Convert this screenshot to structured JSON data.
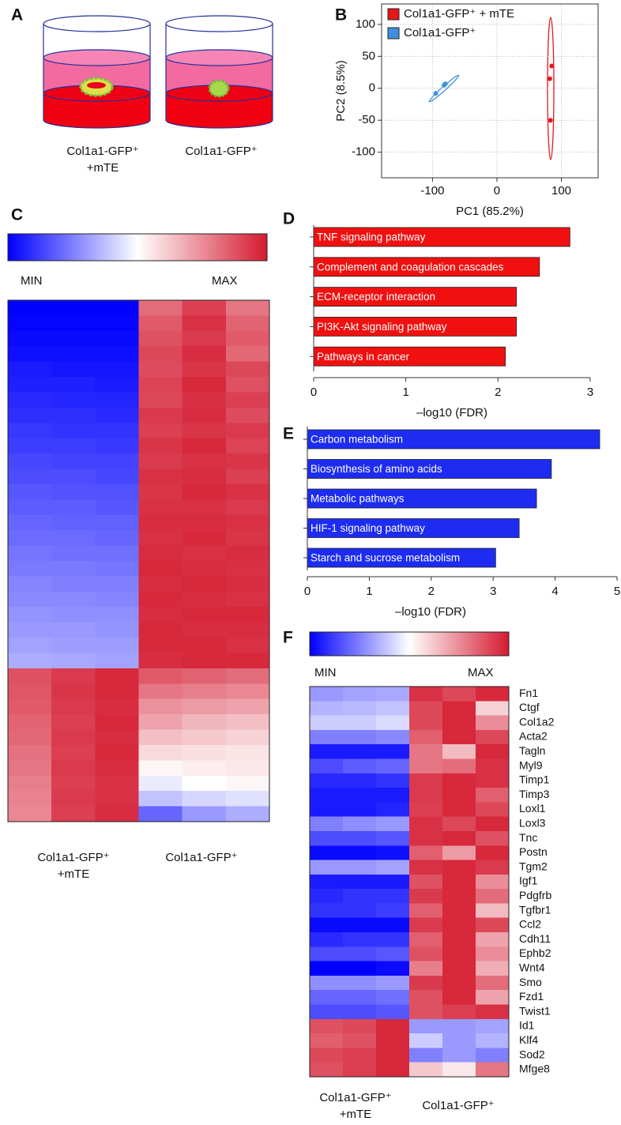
{
  "chart_data": [
    {
      "type": "diagram",
      "panel": "A",
      "labels": [
        [
          "Col1a1-GFP⁺",
          "+mTE"
        ],
        [
          "Col1a1-GFP⁺"
        ]
      ]
    },
    {
      "type": "scatter",
      "panel": "B",
      "xlabel": "PC1 (85.2%)",
      "ylabel": "PC2 (8.5%)",
      "xlim": [
        -179,
        157
      ],
      "ylim": [
        -140,
        132
      ],
      "xticks": [
        -100,
        0,
        100
      ],
      "yticks": [
        -100,
        -50,
        0,
        50,
        100
      ],
      "grid": true,
      "legend": "upper left",
      "series": [
        {
          "name": "Col1a1-GFP⁺ + mTE",
          "color": "#e8161b",
          "x": [
            85,
            82,
            83
          ],
          "y": [
            35,
            15,
            -50
          ]
        },
        {
          "name": "Col1a1-GFP⁺",
          "color": "#3f8fde",
          "x": [
            -95,
            -82,
            -80
          ],
          "y": [
            -8,
            5,
            7
          ]
        }
      ]
    },
    {
      "type": "heatmap",
      "panel": "C",
      "min_label": "MIN",
      "max_label": "MAX",
      "colormap": [
        "#0000ff",
        "#ffffff",
        "#d41a30"
      ],
      "zlim": [
        0,
        1
      ],
      "group_labels": [
        [
          "Col1a1-GFP⁺",
          "+mTE"
        ],
        [
          "Col1a1-GFP⁺"
        ]
      ],
      "values": [
        [
          0.0,
          0.0,
          0.0,
          0.82,
          0.92,
          0.8
        ],
        [
          0.01,
          0.01,
          0.01,
          0.86,
          0.95,
          0.84
        ],
        [
          0.02,
          0.02,
          0.02,
          0.88,
          0.93,
          0.86
        ],
        [
          0.03,
          0.03,
          0.03,
          0.9,
          0.96,
          0.83
        ],
        [
          0.05,
          0.04,
          0.04,
          0.89,
          0.94,
          0.9
        ],
        [
          0.06,
          0.06,
          0.05,
          0.91,
          0.97,
          0.88
        ],
        [
          0.08,
          0.07,
          0.07,
          0.9,
          0.95,
          0.92
        ],
        [
          0.09,
          0.09,
          0.08,
          0.93,
          0.96,
          0.89
        ],
        [
          0.11,
          0.1,
          0.1,
          0.92,
          0.94,
          0.93
        ],
        [
          0.12,
          0.12,
          0.11,
          0.94,
          0.97,
          0.91
        ],
        [
          0.14,
          0.13,
          0.13,
          0.93,
          0.95,
          0.94
        ],
        [
          0.15,
          0.15,
          0.14,
          0.95,
          0.96,
          0.92
        ],
        [
          0.17,
          0.16,
          0.16,
          0.94,
          0.97,
          0.95
        ],
        [
          0.18,
          0.18,
          0.17,
          0.95,
          0.95,
          0.93
        ],
        [
          0.2,
          0.19,
          0.19,
          0.96,
          0.96,
          0.95
        ],
        [
          0.21,
          0.21,
          0.2,
          0.95,
          0.97,
          0.94
        ],
        [
          0.23,
          0.22,
          0.22,
          0.96,
          0.95,
          0.96
        ],
        [
          0.24,
          0.24,
          0.23,
          0.97,
          0.96,
          0.95
        ],
        [
          0.26,
          0.25,
          0.25,
          0.96,
          0.97,
          0.96
        ],
        [
          0.27,
          0.27,
          0.26,
          0.97,
          0.96,
          0.95
        ],
        [
          0.29,
          0.28,
          0.28,
          0.96,
          0.97,
          0.97
        ],
        [
          0.3,
          0.3,
          0.29,
          0.97,
          0.96,
          0.96
        ],
        [
          0.32,
          0.31,
          0.31,
          0.97,
          0.97,
          0.95
        ],
        [
          0.34,
          0.33,
          0.32,
          0.96,
          0.97,
          0.97
        ],
        [
          0.88,
          0.93,
          0.97,
          0.86,
          0.84,
          0.82
        ],
        [
          0.87,
          0.94,
          0.97,
          0.8,
          0.78,
          0.76
        ],
        [
          0.86,
          0.93,
          0.96,
          0.74,
          0.72,
          0.7
        ],
        [
          0.84,
          0.92,
          0.97,
          0.7,
          0.66,
          0.64
        ],
        [
          0.83,
          0.93,
          0.96,
          0.64,
          0.62,
          0.6
        ],
        [
          0.81,
          0.92,
          0.97,
          0.58,
          0.57,
          0.56
        ],
        [
          0.8,
          0.93,
          0.96,
          0.52,
          0.54,
          0.55
        ],
        [
          0.78,
          0.92,
          0.95,
          0.46,
          0.5,
          0.52
        ],
        [
          0.77,
          0.93,
          0.95,
          0.38,
          0.42,
          0.44
        ],
        [
          0.76,
          0.92,
          0.96,
          0.2,
          0.3,
          0.34
        ]
      ]
    },
    {
      "type": "bar",
      "panel": "D",
      "color": "#f01010",
      "xlabel": "–log10 (FDR)",
      "xlim": [
        0,
        3
      ],
      "xticks": [
        0,
        1,
        2,
        3
      ],
      "categories": [
        "TNF signaling pathway",
        "Complement and coagulation cascades",
        "ECM-receptor interaction",
        "PI3K-Akt signaling pathway",
        "Pathways in cancer"
      ],
      "values": [
        2.78,
        2.45,
        2.2,
        2.2,
        2.08
      ]
    },
    {
      "type": "bar",
      "panel": "E",
      "color": "#1d2cf0",
      "xlabel": "–log10 (FDR)",
      "xlim": [
        0,
        5
      ],
      "xticks": [
        0,
        1,
        2,
        3,
        4,
        5
      ],
      "categories": [
        "Carbon metabolism",
        "Biosynthesis of amino acids",
        "Metabolic pathways",
        "HIF-1 signaling pathway",
        "Starch and sucrose metabolism"
      ],
      "values": [
        4.72,
        3.94,
        3.7,
        3.42,
        3.04
      ]
    },
    {
      "type": "heatmap",
      "panel": "F",
      "min_label": "MIN",
      "max_label": "MAX",
      "colormap": [
        "#0000ff",
        "#ffffff",
        "#d41a30"
      ],
      "zlim": [
        0,
        1
      ],
      "group_labels": [
        [
          "Col1a1-GFP⁺",
          "+mTE"
        ],
        [
          "Col1a1-GFP⁺"
        ]
      ],
      "categories": [
        "Fn1",
        "Ctgf",
        "Col1a2",
        "Acta2",
        "Tagln",
        "Myl9",
        "Timp1",
        "Timp3",
        "Loxl1",
        "Loxl3",
        "Tnc",
        "Postn",
        "Tgm2",
        "Igf1",
        "Pdgfrb",
        "Tgfbr1",
        "Ccl2",
        "Cdh11",
        "Ephb2",
        "Wnt4",
        "Smo",
        "Fzd1",
        "Twist1",
        "Id1",
        "Klf4",
        "Sod2",
        "Mfge8"
      ],
      "values": [
        [
          0.3,
          0.32,
          0.33,
          0.95,
          0.9,
          0.97
        ],
        [
          0.35,
          0.36,
          0.38,
          0.9,
          0.97,
          0.6
        ],
        [
          0.4,
          0.4,
          0.43,
          0.9,
          0.97,
          0.75
        ],
        [
          0.25,
          0.25,
          0.27,
          0.85,
          0.97,
          0.9
        ],
        [
          0.05,
          0.05,
          0.05,
          0.8,
          0.65,
          0.97
        ],
        [
          0.15,
          0.18,
          0.2,
          0.8,
          0.82,
          0.95
        ],
        [
          0.08,
          0.08,
          0.1,
          0.93,
          0.97,
          0.95
        ],
        [
          0.05,
          0.05,
          0.05,
          0.93,
          0.97,
          0.85
        ],
        [
          0.05,
          0.05,
          0.07,
          0.92,
          0.97,
          0.9
        ],
        [
          0.25,
          0.28,
          0.3,
          0.95,
          0.9,
          0.97
        ],
        [
          0.15,
          0.15,
          0.17,
          0.95,
          0.97,
          0.88
        ],
        [
          0.02,
          0.02,
          0.03,
          0.85,
          0.72,
          0.97
        ],
        [
          0.3,
          0.3,
          0.32,
          0.95,
          0.97,
          0.93
        ],
        [
          0.05,
          0.05,
          0.05,
          0.88,
          0.97,
          0.75
        ],
        [
          0.08,
          0.1,
          0.1,
          0.93,
          0.97,
          0.82
        ],
        [
          0.1,
          0.1,
          0.12,
          0.85,
          0.97,
          0.65
        ],
        [
          0.02,
          0.02,
          0.02,
          0.93,
          0.97,
          0.9
        ],
        [
          0.08,
          0.1,
          0.1,
          0.85,
          0.97,
          0.7
        ],
        [
          0.15,
          0.15,
          0.17,
          0.88,
          0.97,
          0.75
        ],
        [
          0.0,
          0.0,
          0.02,
          0.78,
          0.97,
          0.68
        ],
        [
          0.28,
          0.28,
          0.3,
          0.93,
          0.97,
          0.82
        ],
        [
          0.2,
          0.2,
          0.22,
          0.88,
          0.97,
          0.7
        ],
        [
          0.15,
          0.15,
          0.17,
          0.88,
          0.92,
          0.95
        ],
        [
          0.88,
          0.9,
          0.97,
          0.3,
          0.3,
          0.32
        ],
        [
          0.85,
          0.88,
          0.97,
          0.4,
          0.3,
          0.35
        ],
        [
          0.9,
          0.92,
          0.97,
          0.25,
          0.3,
          0.25
        ],
        [
          0.88,
          0.92,
          0.97,
          0.62,
          0.55,
          0.8
        ]
      ]
    }
  ]
}
